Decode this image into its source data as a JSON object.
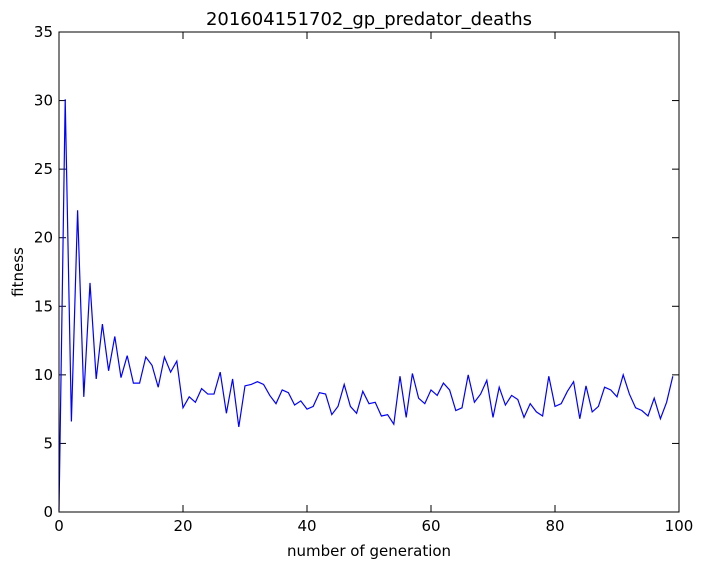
{
  "chart_data": {
    "type": "line",
    "title": "201604151702_gp_predator_deaths",
    "xlabel": "number of generation",
    "ylabel": "fitness",
    "xlim": [
      0,
      100
    ],
    "ylim": [
      0,
      35
    ],
    "x_ticks": [
      0,
      20,
      40,
      60,
      80,
      100
    ],
    "y_ticks": [
      0,
      5,
      10,
      15,
      20,
      25,
      30,
      35
    ],
    "grid": false,
    "series": [
      {
        "color": "#0000ff",
        "x": [
          0,
          1,
          2,
          3,
          4,
          5,
          6,
          7,
          8,
          9,
          10,
          11,
          12,
          13,
          14,
          15,
          16,
          17,
          18,
          19,
          20,
          21,
          22,
          23,
          24,
          25,
          26,
          27,
          28,
          29,
          30,
          31,
          32,
          33,
          34,
          35,
          36,
          37,
          38,
          39,
          40,
          41,
          42,
          43,
          44,
          45,
          46,
          47,
          48,
          49,
          50,
          51,
          52,
          53,
          54,
          55,
          56,
          57,
          58,
          59,
          60,
          61,
          62,
          63,
          64,
          65,
          66,
          67,
          68,
          69,
          70,
          71,
          72,
          73,
          74,
          75,
          76,
          77,
          78,
          79,
          80,
          81,
          82,
          83,
          84,
          85,
          86,
          87,
          88,
          89,
          90,
          91,
          92,
          93,
          94,
          95,
          96,
          97,
          98,
          99
        ],
        "values": [
          0.1,
          30.1,
          6.6,
          22.0,
          8.4,
          16.7,
          9.7,
          13.7,
          10.3,
          12.8,
          9.8,
          11.4,
          9.4,
          9.4,
          11.3,
          10.7,
          9.1,
          11.3,
          10.2,
          11.0,
          7.6,
          8.4,
          8.0,
          9.0,
          8.6,
          8.6,
          10.2,
          7.2,
          9.7,
          6.2,
          9.2,
          9.3,
          9.5,
          9.3,
          8.5,
          7.9,
          8.9,
          8.7,
          7.8,
          8.1,
          7.5,
          7.7,
          8.7,
          8.6,
          7.1,
          7.7,
          9.3,
          7.7,
          7.2,
          8.8,
          7.9,
          8.0,
          7.0,
          7.1,
          6.4,
          9.9,
          6.9,
          10.1,
          8.3,
          7.9,
          8.9,
          8.5,
          9.4,
          8.9,
          7.4,
          7.6,
          10.0,
          8.0,
          8.6,
          9.6,
          6.9,
          9.1,
          7.8,
          8.5,
          8.2,
          6.9,
          7.9,
          7.3,
          7.0,
          9.9,
          7.7,
          7.9,
          8.8,
          9.5,
          6.8,
          9.2,
          7.3,
          7.7,
          9.1,
          8.9,
          8.4,
          10.0,
          8.6,
          7.6,
          7.4,
          7.0,
          8.3,
          6.8,
          8.0,
          9.9
        ]
      }
    ]
  }
}
